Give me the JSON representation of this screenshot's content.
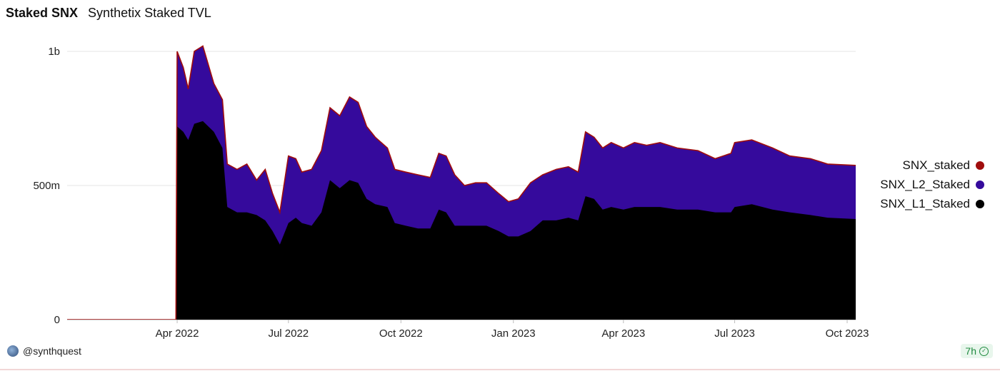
{
  "header": {
    "title": "Staked SNX",
    "subtitle": "Synthetix Staked TVL"
  },
  "footer": {
    "user": "@synthquest",
    "age": "7h"
  },
  "chart_data": {
    "type": "area",
    "title": "Synthetix Staked TVL",
    "xlabel": "",
    "ylabel": "",
    "x_range": [
      "2022-01-01",
      "2023-10-08"
    ],
    "ylim": [
      0,
      1000000000
    ],
    "y_ticks": [
      {
        "value": 0,
        "label": "0"
      },
      {
        "value": 500000000,
        "label": "500m"
      },
      {
        "value": 1000000000,
        "label": "1b"
      }
    ],
    "x_ticks": [
      {
        "date": "2022-04-01",
        "label": "Apr 2022"
      },
      {
        "date": "2022-07-01",
        "label": "Jul 2022"
      },
      {
        "date": "2022-10-01",
        "label": "Oct 2022"
      },
      {
        "date": "2023-01-01",
        "label": "Jan 2023"
      },
      {
        "date": "2023-04-01",
        "label": "Apr 2023"
      },
      {
        "date": "2023-07-01",
        "label": "Jul 2023"
      },
      {
        "date": "2023-10-01",
        "label": "Oct 2023"
      }
    ],
    "grid": true,
    "legend_position": "right",
    "series": [
      {
        "name": "SNX_staked",
        "color": "#a00d0d",
        "points": [
          [
            "2022-01-01",
            0
          ],
          [
            "2022-03-31",
            0
          ],
          [
            "2022-04-01",
            1000000000
          ],
          [
            "2022-04-06",
            940000000
          ],
          [
            "2022-04-10",
            860000000
          ],
          [
            "2022-04-15",
            1000000000
          ],
          [
            "2022-04-22",
            1020000000
          ],
          [
            "2022-05-01",
            880000000
          ],
          [
            "2022-05-08",
            820000000
          ],
          [
            "2022-05-12",
            580000000
          ],
          [
            "2022-05-20",
            560000000
          ],
          [
            "2022-05-28",
            580000000
          ],
          [
            "2022-06-05",
            520000000
          ],
          [
            "2022-06-12",
            560000000
          ],
          [
            "2022-06-18",
            470000000
          ],
          [
            "2022-06-24",
            400000000
          ],
          [
            "2022-07-01",
            610000000
          ],
          [
            "2022-07-07",
            600000000
          ],
          [
            "2022-07-12",
            550000000
          ],
          [
            "2022-07-20",
            560000000
          ],
          [
            "2022-07-28",
            630000000
          ],
          [
            "2022-08-04",
            790000000
          ],
          [
            "2022-08-12",
            760000000
          ],
          [
            "2022-08-20",
            830000000
          ],
          [
            "2022-08-27",
            810000000
          ],
          [
            "2022-09-03",
            720000000
          ],
          [
            "2022-09-10",
            680000000
          ],
          [
            "2022-09-20",
            640000000
          ],
          [
            "2022-09-26",
            560000000
          ],
          [
            "2022-10-05",
            550000000
          ],
          [
            "2022-10-15",
            540000000
          ],
          [
            "2022-10-25",
            530000000
          ],
          [
            "2022-11-01",
            620000000
          ],
          [
            "2022-11-07",
            610000000
          ],
          [
            "2022-11-14",
            540000000
          ],
          [
            "2022-11-22",
            500000000
          ],
          [
            "2022-12-01",
            510000000
          ],
          [
            "2022-12-10",
            510000000
          ],
          [
            "2022-12-20",
            470000000
          ],
          [
            "2022-12-28",
            440000000
          ],
          [
            "2023-01-05",
            450000000
          ],
          [
            "2023-01-15",
            510000000
          ],
          [
            "2023-01-25",
            540000000
          ],
          [
            "2023-02-05",
            560000000
          ],
          [
            "2023-02-15",
            570000000
          ],
          [
            "2023-02-23",
            550000000
          ],
          [
            "2023-03-01",
            700000000
          ],
          [
            "2023-03-08",
            680000000
          ],
          [
            "2023-03-15",
            640000000
          ],
          [
            "2023-03-22",
            660000000
          ],
          [
            "2023-04-01",
            640000000
          ],
          [
            "2023-04-10",
            660000000
          ],
          [
            "2023-04-20",
            650000000
          ],
          [
            "2023-05-01",
            660000000
          ],
          [
            "2023-05-15",
            640000000
          ],
          [
            "2023-06-01",
            630000000
          ],
          [
            "2023-06-15",
            600000000
          ],
          [
            "2023-06-28",
            620000000
          ],
          [
            "2023-07-01",
            660000000
          ],
          [
            "2023-07-15",
            670000000
          ],
          [
            "2023-08-01",
            640000000
          ],
          [
            "2023-08-15",
            610000000
          ],
          [
            "2023-09-01",
            600000000
          ],
          [
            "2023-09-15",
            580000000
          ],
          [
            "2023-10-08",
            575000000
          ]
        ]
      },
      {
        "name": "SNX_L2_Staked",
        "color": "#350a9c",
        "points": [
          [
            "2022-01-01",
            0
          ],
          [
            "2022-03-31",
            0
          ],
          [
            "2022-04-01",
            1000000000
          ],
          [
            "2022-04-06",
            940000000
          ],
          [
            "2022-04-10",
            860000000
          ],
          [
            "2022-04-15",
            1000000000
          ],
          [
            "2022-04-22",
            1020000000
          ],
          [
            "2022-05-01",
            880000000
          ],
          [
            "2022-05-08",
            820000000
          ],
          [
            "2022-05-12",
            580000000
          ],
          [
            "2022-05-20",
            560000000
          ],
          [
            "2022-05-28",
            580000000
          ],
          [
            "2022-06-05",
            520000000
          ],
          [
            "2022-06-12",
            560000000
          ],
          [
            "2022-06-18",
            470000000
          ],
          [
            "2022-06-24",
            400000000
          ],
          [
            "2022-07-01",
            610000000
          ],
          [
            "2022-07-07",
            600000000
          ],
          [
            "2022-07-12",
            550000000
          ],
          [
            "2022-07-20",
            560000000
          ],
          [
            "2022-07-28",
            630000000
          ],
          [
            "2022-08-04",
            790000000
          ],
          [
            "2022-08-12",
            760000000
          ],
          [
            "2022-08-20",
            830000000
          ],
          [
            "2022-08-27",
            810000000
          ],
          [
            "2022-09-03",
            720000000
          ],
          [
            "2022-09-10",
            680000000
          ],
          [
            "2022-09-20",
            640000000
          ],
          [
            "2022-09-26",
            560000000
          ],
          [
            "2022-10-05",
            550000000
          ],
          [
            "2022-10-15",
            540000000
          ],
          [
            "2022-10-25",
            530000000
          ],
          [
            "2022-11-01",
            620000000
          ],
          [
            "2022-11-07",
            610000000
          ],
          [
            "2022-11-14",
            540000000
          ],
          [
            "2022-11-22",
            500000000
          ],
          [
            "2022-12-01",
            510000000
          ],
          [
            "2022-12-10",
            510000000
          ],
          [
            "2022-12-20",
            470000000
          ],
          [
            "2022-12-28",
            440000000
          ],
          [
            "2023-01-05",
            450000000
          ],
          [
            "2023-01-15",
            510000000
          ],
          [
            "2023-01-25",
            540000000
          ],
          [
            "2023-02-05",
            560000000
          ],
          [
            "2023-02-15",
            570000000
          ],
          [
            "2023-02-23",
            550000000
          ],
          [
            "2023-03-01",
            700000000
          ],
          [
            "2023-03-08",
            680000000
          ],
          [
            "2023-03-15",
            640000000
          ],
          [
            "2023-03-22",
            660000000
          ],
          [
            "2023-04-01",
            640000000
          ],
          [
            "2023-04-10",
            660000000
          ],
          [
            "2023-04-20",
            650000000
          ],
          [
            "2023-05-01",
            660000000
          ],
          [
            "2023-05-15",
            640000000
          ],
          [
            "2023-06-01",
            630000000
          ],
          [
            "2023-06-15",
            600000000
          ],
          [
            "2023-06-28",
            620000000
          ],
          [
            "2023-07-01",
            660000000
          ],
          [
            "2023-07-15",
            670000000
          ],
          [
            "2023-08-01",
            640000000
          ],
          [
            "2023-08-15",
            610000000
          ],
          [
            "2023-09-01",
            600000000
          ],
          [
            "2023-09-15",
            580000000
          ],
          [
            "2023-10-08",
            575000000
          ]
        ]
      },
      {
        "name": "SNX_L1_Staked",
        "color": "#000000",
        "points": [
          [
            "2022-01-01",
            0
          ],
          [
            "2022-03-31",
            0
          ],
          [
            "2022-04-01",
            720000000
          ],
          [
            "2022-04-06",
            700000000
          ],
          [
            "2022-04-10",
            670000000
          ],
          [
            "2022-04-15",
            730000000
          ],
          [
            "2022-04-22",
            740000000
          ],
          [
            "2022-05-01",
            700000000
          ],
          [
            "2022-05-08",
            640000000
          ],
          [
            "2022-05-12",
            420000000
          ],
          [
            "2022-05-20",
            400000000
          ],
          [
            "2022-05-28",
            400000000
          ],
          [
            "2022-06-05",
            390000000
          ],
          [
            "2022-06-12",
            370000000
          ],
          [
            "2022-06-18",
            330000000
          ],
          [
            "2022-06-24",
            280000000
          ],
          [
            "2022-07-01",
            360000000
          ],
          [
            "2022-07-07",
            380000000
          ],
          [
            "2022-07-12",
            360000000
          ],
          [
            "2022-07-20",
            350000000
          ],
          [
            "2022-07-28",
            400000000
          ],
          [
            "2022-08-04",
            520000000
          ],
          [
            "2022-08-12",
            490000000
          ],
          [
            "2022-08-20",
            520000000
          ],
          [
            "2022-08-27",
            510000000
          ],
          [
            "2022-09-03",
            450000000
          ],
          [
            "2022-09-10",
            430000000
          ],
          [
            "2022-09-20",
            420000000
          ],
          [
            "2022-09-26",
            360000000
          ],
          [
            "2022-10-05",
            350000000
          ],
          [
            "2022-10-15",
            340000000
          ],
          [
            "2022-10-25",
            340000000
          ],
          [
            "2022-11-01",
            410000000
          ],
          [
            "2022-11-07",
            400000000
          ],
          [
            "2022-11-14",
            350000000
          ],
          [
            "2022-11-22",
            350000000
          ],
          [
            "2022-12-01",
            350000000
          ],
          [
            "2022-12-10",
            350000000
          ],
          [
            "2022-12-20",
            330000000
          ],
          [
            "2022-12-28",
            310000000
          ],
          [
            "2023-01-05",
            310000000
          ],
          [
            "2023-01-15",
            330000000
          ],
          [
            "2023-01-25",
            370000000
          ],
          [
            "2023-02-05",
            370000000
          ],
          [
            "2023-02-15",
            380000000
          ],
          [
            "2023-02-23",
            370000000
          ],
          [
            "2023-03-01",
            460000000
          ],
          [
            "2023-03-08",
            450000000
          ],
          [
            "2023-03-15",
            410000000
          ],
          [
            "2023-03-22",
            420000000
          ],
          [
            "2023-04-01",
            410000000
          ],
          [
            "2023-04-10",
            420000000
          ],
          [
            "2023-04-20",
            420000000
          ],
          [
            "2023-05-01",
            420000000
          ],
          [
            "2023-05-15",
            410000000
          ],
          [
            "2023-06-01",
            410000000
          ],
          [
            "2023-06-15",
            400000000
          ],
          [
            "2023-06-28",
            400000000
          ],
          [
            "2023-07-01",
            420000000
          ],
          [
            "2023-07-15",
            430000000
          ],
          [
            "2023-08-01",
            410000000
          ],
          [
            "2023-08-15",
            400000000
          ],
          [
            "2023-09-01",
            390000000
          ],
          [
            "2023-09-15",
            380000000
          ],
          [
            "2023-10-08",
            375000000
          ]
        ]
      }
    ]
  }
}
